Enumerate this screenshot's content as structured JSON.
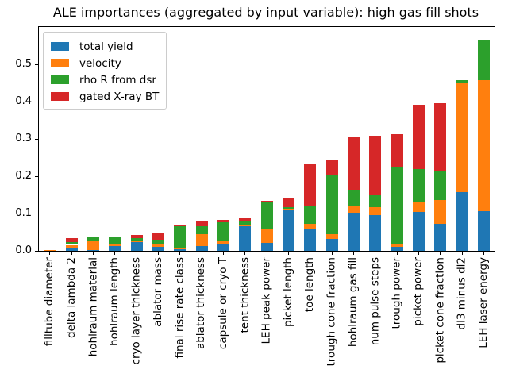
{
  "chart_data": {
    "type": "bar",
    "stacked": true,
    "title": "ALE importances (aggregated by input variable): high gas fill shots",
    "grid": false,
    "legend_position": "upper left",
    "ylim": [
      0,
      0.6
    ],
    "yticks": [
      0,
      0.1,
      0.2,
      0.3,
      0.4,
      0.5
    ],
    "ytick_labels": [
      "0.0",
      "0.1",
      "0.2",
      "0.3",
      "0.4",
      "0.5"
    ],
    "categories": [
      "filltube diameter",
      "delta lambda 2",
      "hohlraum material",
      "hohlraum length",
      "cryo layer thickness",
      "ablator mass",
      "final rise rate class",
      "ablator thickness",
      "capsule or cryo T",
      "tent thickness",
      "LEH peak power",
      "picket length",
      "toe length",
      "trough cone fraction",
      "hohlraum gas fill",
      "num pulse steps",
      "trough power",
      "picket power",
      "picket cone fraction",
      "dl3 minus dl2",
      "LEH laser energy"
    ],
    "series": [
      {
        "name": "total yield",
        "color": "#1f77b4",
        "values": [
          0,
          0.008,
          0.003,
          0.013,
          0.023,
          0.01,
          0.004,
          0.012,
          0.017,
          0.067,
          0.021,
          0.108,
          0.06,
          0.033,
          0.103,
          0.096,
          0.011,
          0.104,
          0.073,
          0.157,
          0.107
        ]
      },
      {
        "name": "velocity",
        "color": "#ff7f0e",
        "values": [
          0.003,
          0.008,
          0.023,
          0.004,
          0.005,
          0.009,
          0.002,
          0.032,
          0.01,
          0.004,
          0.039,
          0.004,
          0.013,
          0.011,
          0.019,
          0.021,
          0.006,
          0.028,
          0.063,
          0.295,
          0.351
        ]
      },
      {
        "name": "rho R from dsr",
        "color": "#2ca02c",
        "values": [
          0,
          0.007,
          0.01,
          0.022,
          0.007,
          0.01,
          0.06,
          0.021,
          0.049,
          0.007,
          0.069,
          0.006,
          0.046,
          0.161,
          0.042,
          0.031,
          0.207,
          0.088,
          0.077,
          0.006,
          0.106
        ]
      },
      {
        "name": "gated X-ray BT",
        "color": "#d62728",
        "values": [
          0,
          0.011,
          0,
          0,
          0.007,
          0.02,
          0.005,
          0.013,
          0.006,
          0.01,
          0.006,
          0.022,
          0.115,
          0.04,
          0.14,
          0.161,
          0.089,
          0.172,
          0.183,
          0,
          0
        ]
      }
    ]
  }
}
